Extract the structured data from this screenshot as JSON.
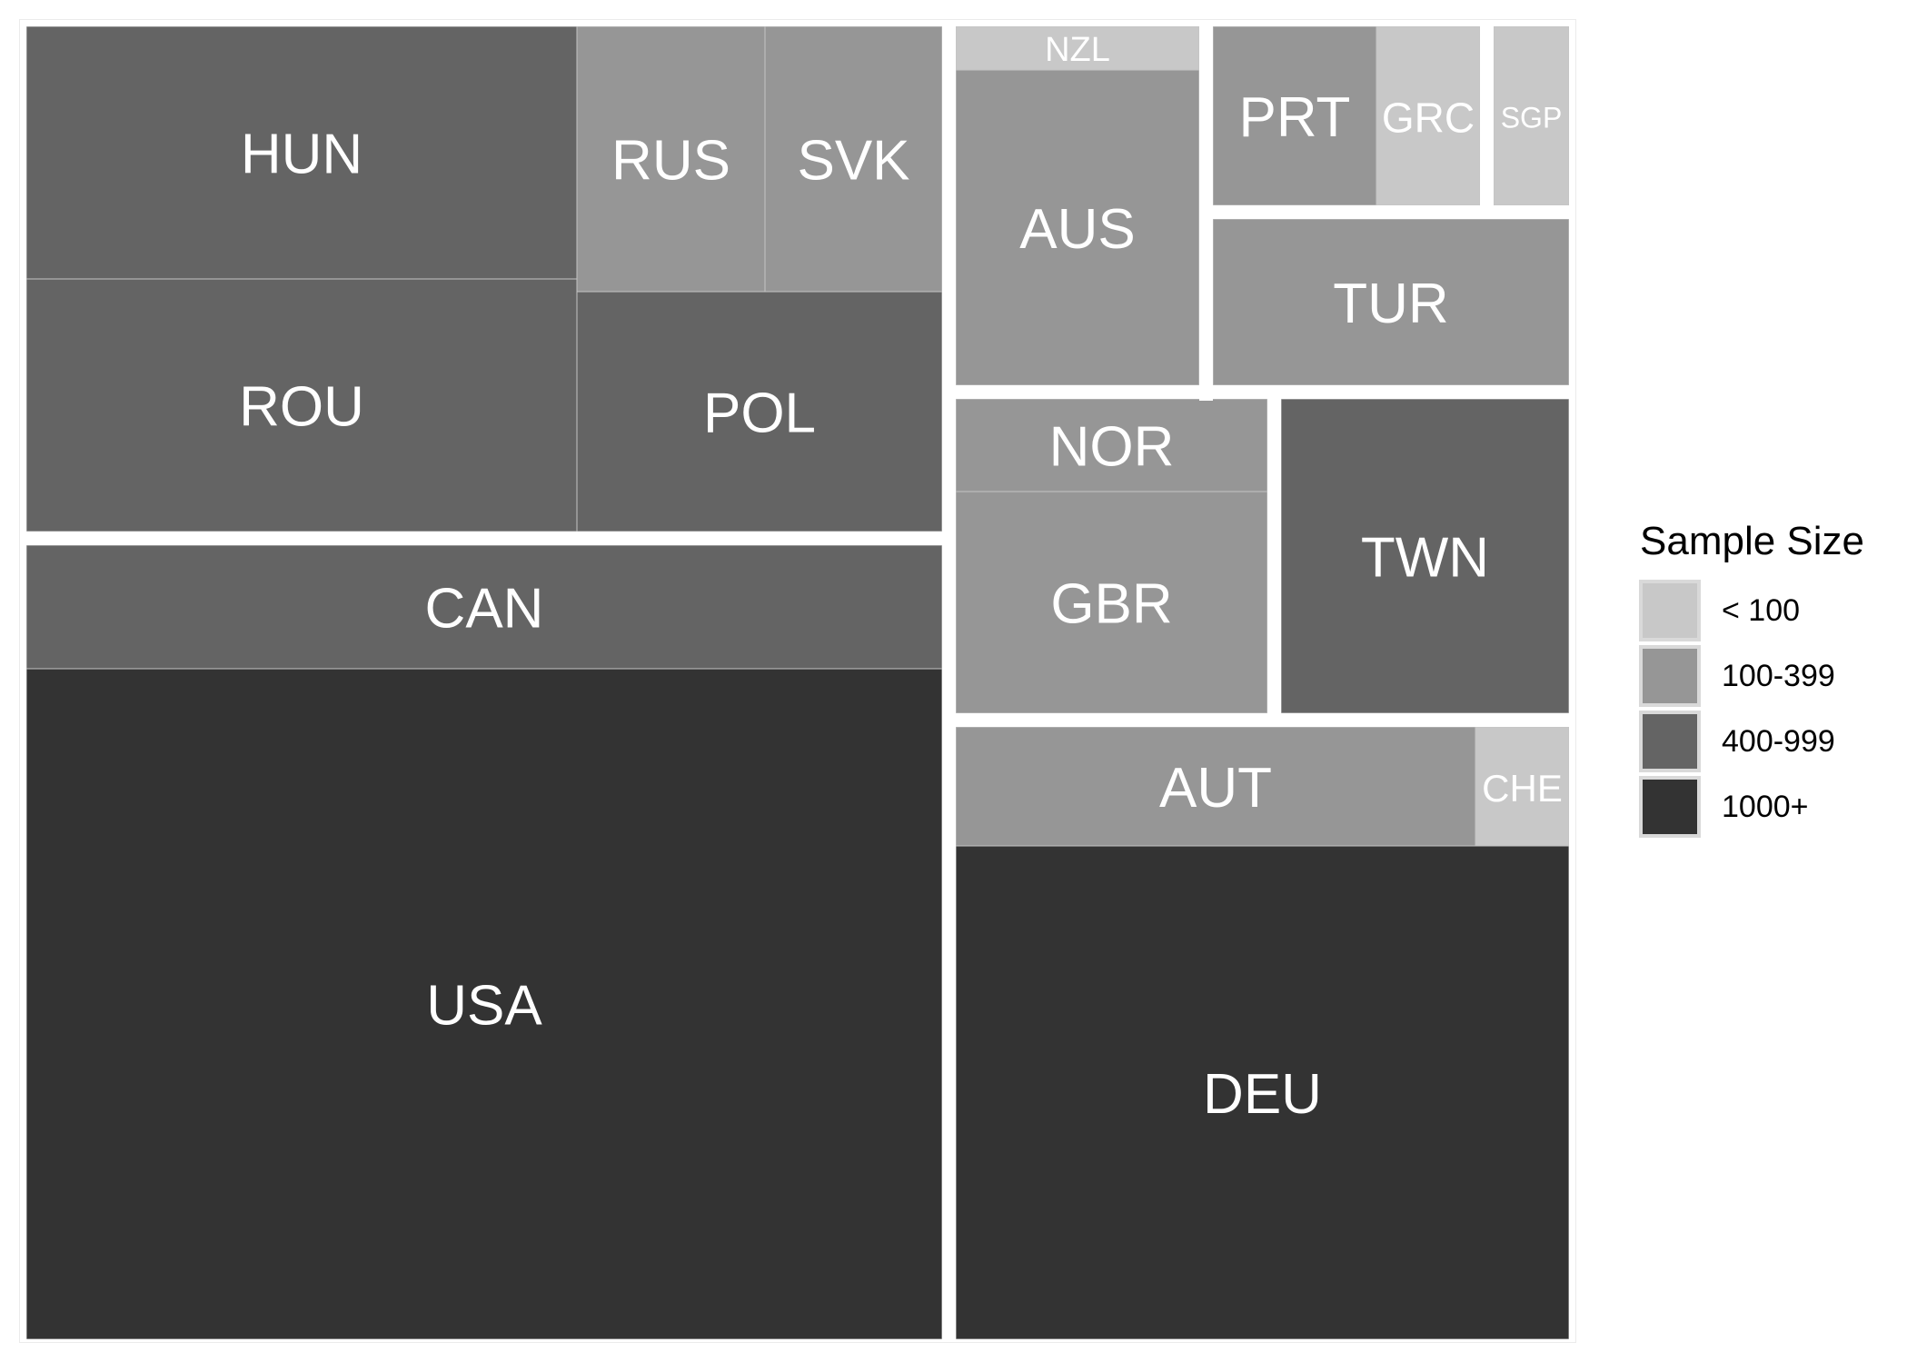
{
  "chart_data": {
    "type": "treemap",
    "title": "",
    "legend": {
      "title": "Sample Size",
      "placement": "right",
      "items": [
        {
          "label": "< 100",
          "color": "#c8c8c8"
        },
        {
          "label": "100-399",
          "color": "#969696"
        },
        {
          "label": "400-999",
          "color": "#646464"
        },
        {
          "label": "1000+",
          "color": "#333333"
        }
      ]
    },
    "tiles": [
      {
        "label": "HUN",
        "category": "400-999"
      },
      {
        "label": "RUS",
        "category": "100-399"
      },
      {
        "label": "SVK",
        "category": "100-399"
      },
      {
        "label": "ROU",
        "category": "400-999"
      },
      {
        "label": "POL",
        "category": "400-999"
      },
      {
        "label": "CAN",
        "category": "400-999"
      },
      {
        "label": "USA",
        "category": "1000+"
      },
      {
        "label": "NZL",
        "category": "< 100"
      },
      {
        "label": "AUS",
        "category": "100-399"
      },
      {
        "label": "PRT",
        "category": "100-399"
      },
      {
        "label": "GRC",
        "category": "< 100"
      },
      {
        "label": "SGP",
        "category": "< 100"
      },
      {
        "label": "TUR",
        "category": "100-399"
      },
      {
        "label": "NOR",
        "category": "100-399"
      },
      {
        "label": "GBR",
        "category": "100-399"
      },
      {
        "label": "TWN",
        "category": "400-999"
      },
      {
        "label": "AUT",
        "category": "100-399"
      },
      {
        "label": "CHE",
        "category": "< 100"
      },
      {
        "label": "DEU",
        "category": "1000+"
      }
    ]
  }
}
